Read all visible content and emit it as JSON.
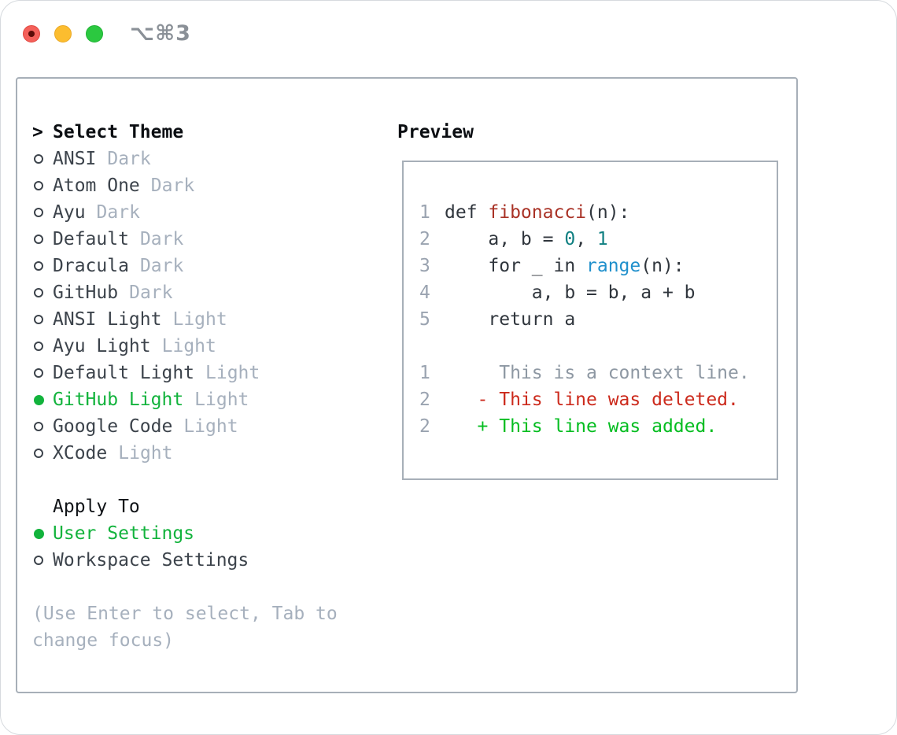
{
  "window": {
    "shortcut": "⌥⌘3",
    "traffic_lights": [
      "close",
      "minimize",
      "zoom"
    ]
  },
  "colors": {
    "accent_green": "#12b33c",
    "diff_added_green": "#04bd20",
    "diff_deleted_red": "#cc2a1c",
    "function_red": "#a93226",
    "builtin_blue": "#2090cc",
    "number_teal": "#0f7f81",
    "muted_gray": "#a6b0bd",
    "panel_border": "#a7afb8",
    "traffic_red": "#f4605a",
    "traffic_yellow": "#fcbd2f",
    "traffic_green": "#2bc840"
  },
  "theme_panel": {
    "title_prefix": ">",
    "title": "Select Theme",
    "themes": [
      {
        "name": "ANSI",
        "variant": "Dark",
        "selected": false
      },
      {
        "name": "Atom One",
        "variant": "Dark",
        "selected": false
      },
      {
        "name": "Ayu",
        "variant": "Dark",
        "selected": false
      },
      {
        "name": "Default",
        "variant": "Dark",
        "selected": false
      },
      {
        "name": "Dracula",
        "variant": "Dark",
        "selected": false
      },
      {
        "name": "GitHub",
        "variant": "Dark",
        "selected": false
      },
      {
        "name": "ANSI Light",
        "variant": "Light",
        "selected": false
      },
      {
        "name": "Ayu Light",
        "variant": "Light",
        "selected": false
      },
      {
        "name": "Default Light",
        "variant": "Light",
        "selected": false
      },
      {
        "name": "GitHub Light",
        "variant": "Light",
        "selected": true
      },
      {
        "name": "Google Code",
        "variant": "Light",
        "selected": false
      },
      {
        "name": "XCode",
        "variant": "Light",
        "selected": false
      }
    ],
    "apply_to": {
      "title": "Apply To",
      "options": [
        {
          "label": "User Settings",
          "selected": true
        },
        {
          "label": "Workspace Settings",
          "selected": false
        }
      ]
    },
    "help_text": "(Use Enter to select, Tab to change focus)"
  },
  "preview": {
    "title": "Preview",
    "code_lines": [
      {
        "num": "1",
        "segments": [
          {
            "t": "def ",
            "c": "code"
          },
          {
            "t": "fibonacci",
            "c": "func"
          },
          {
            "t": "(n):",
            "c": "code"
          }
        ]
      },
      {
        "num": "2",
        "segments": [
          {
            "t": "    a, b = ",
            "c": "code"
          },
          {
            "t": "0",
            "c": "num"
          },
          {
            "t": ", ",
            "c": "code"
          },
          {
            "t": "1",
            "c": "num"
          }
        ]
      },
      {
        "num": "3",
        "segments": [
          {
            "t": "    for _ in ",
            "c": "code"
          },
          {
            "t": "range",
            "c": "builtin"
          },
          {
            "t": "(n):",
            "c": "code"
          }
        ]
      },
      {
        "num": "4",
        "segments": [
          {
            "t": "        a, b = b, a + b",
            "c": "code"
          }
        ]
      },
      {
        "num": "5",
        "segments": [
          {
            "t": "    return a",
            "c": "code"
          }
        ]
      }
    ],
    "diff_lines": [
      {
        "num": "1",
        "segments": [
          {
            "t": "     This is a context line.",
            "c": "context"
          }
        ]
      },
      {
        "num": "2",
        "segments": [
          {
            "t": "   - This line was deleted.",
            "c": "deleted"
          }
        ]
      },
      {
        "num": "2",
        "segments": [
          {
            "t": "   + This line was added.",
            "c": "added"
          }
        ]
      }
    ]
  }
}
